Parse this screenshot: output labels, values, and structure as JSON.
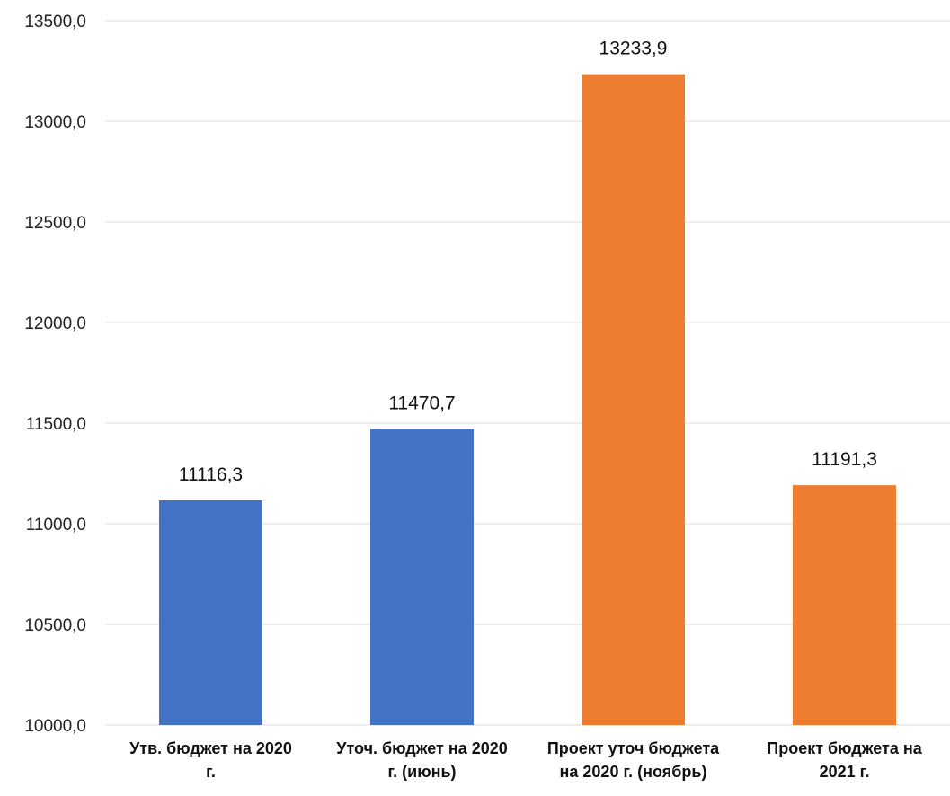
{
  "chart_data": {
    "type": "bar",
    "title": "",
    "xlabel": "",
    "ylabel": "",
    "categories": [
      [
        "Утв.  бюджет на 2020",
        "г."
      ],
      [
        "Уточ. бюджет на 2020",
        "г. (июнь)"
      ],
      [
        "Проект уточ бюджета",
        "на 2020 г. (ноябрь)"
      ],
      [
        "Проект бюджета на",
        "2021 г."
      ]
    ],
    "values": [
      11116.3,
      11470.7,
      13233.9,
      11191.3
    ],
    "value_labels": [
      "11116,3",
      "11470,7",
      "13233,9",
      "11191,3"
    ],
    "bar_colors": [
      "#4472C4",
      "#4472C4",
      "#ED7D31",
      "#ED7D31"
    ],
    "ylim": [
      10000,
      13500
    ],
    "yticks": [
      10000,
      10500,
      11000,
      11500,
      12000,
      12500,
      13000,
      13500
    ],
    "ytick_labels": [
      "10000,0",
      "10500,0",
      "11000,0",
      "11500,0",
      "12000,0",
      "12500,0",
      "13000,0",
      "13500,0"
    ],
    "grid": true,
    "legend": "none"
  }
}
